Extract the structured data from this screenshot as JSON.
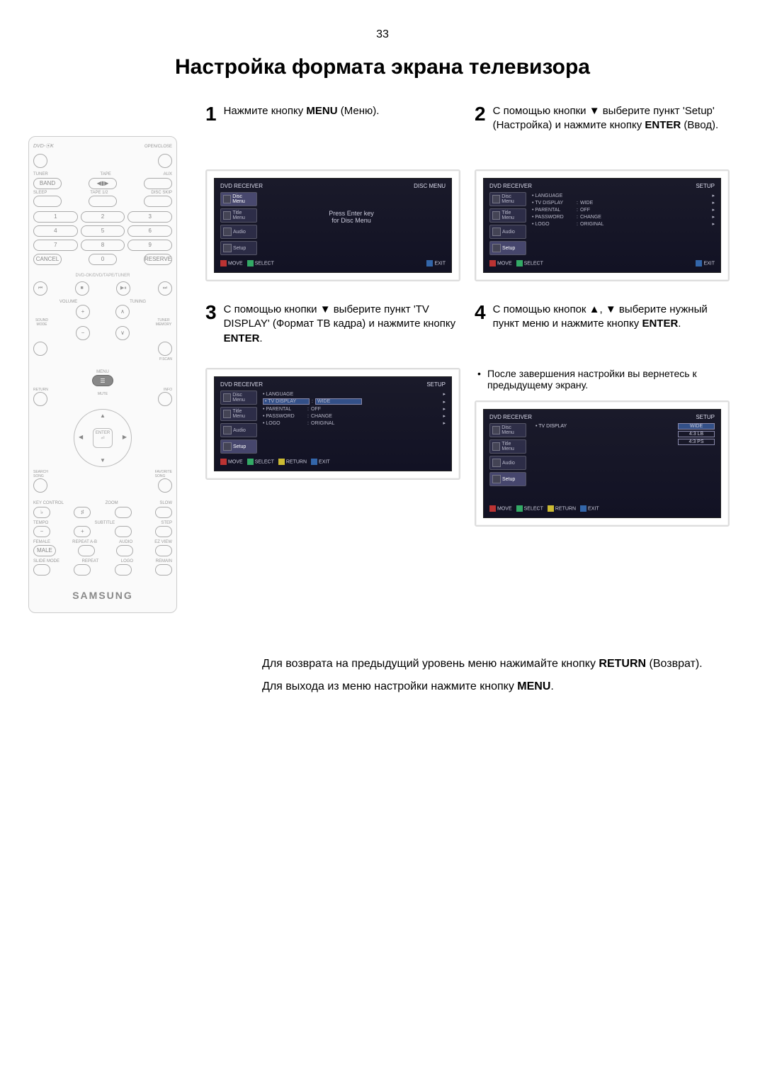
{
  "page_number": "33",
  "title": "Настройка формата экрана телевизора",
  "remote": {
    "brand_line": "DVD-⦿K",
    "open_close": "OPEN/CLOSE",
    "labels_row1": [
      "TUNER",
      "TAPE",
      "AUX"
    ],
    "pill_row1": [
      "BAND",
      "◀▮▶",
      ""
    ],
    "labels_row2": [
      "SLEEP",
      "TAPE 1/2",
      "DISC SKIP"
    ],
    "numpad": [
      "1",
      "2",
      "3",
      "4",
      "5",
      "6",
      "7",
      "8",
      "9"
    ],
    "bottom_row": [
      "CANCEL",
      "0",
      "RESERVE"
    ],
    "section_label": "DVD-OK/DVD/TAPE/TUNER",
    "transport": [
      "⏮",
      "■",
      "▶⏸",
      "⏭"
    ],
    "vol_label": "VOLUME",
    "tuning_label": "TUNING",
    "sound_mode": "SOUND\nMODE",
    "tuner_mem": "TUNER\nMEMORY",
    "pscan": "P.SCAN",
    "menu": "MENU",
    "info": "INFO",
    "return": "RETURN",
    "mute": "MUTE",
    "enter": "ENTER",
    "search_song": "SEARCH\nSONG",
    "favorite_song": "FAVORITE\nSONG",
    "key_control": "KEY CONTROL",
    "zoom": "ZOOM",
    "slow": "SLOW",
    "tempo": "TEMPO",
    "subtitle": "SUBTITLE",
    "step_btn": "STEP",
    "female": "FEMALE",
    "male": "MALE",
    "repeat_ab": "REPEAT A-B",
    "audio_btn": "AUDIO",
    "ezview": "EZ VIEW",
    "slide_mode": "SLIDE MODE",
    "repeat": "REPEAT",
    "logo_btn": "LOGO",
    "remain": "REMAIN",
    "brand": "SAMSUNG"
  },
  "steps": [
    {
      "num": "1",
      "text_parts": [
        {
          "t": "Нажмите кнопку ",
          "b": false
        },
        {
          "t": "MENU",
          "b": true
        },
        {
          "t": " (Меню).",
          "b": false
        }
      ]
    },
    {
      "num": "2",
      "text_parts": [
        {
          "t": "С помощью кнопки ▼ выберите пункт 'Setup' (Настройка) и нажмите кнопку ",
          "b": false
        },
        {
          "t": "ENTER",
          "b": true
        },
        {
          "t": " (Ввод).",
          "b": false
        }
      ]
    },
    {
      "num": "3",
      "text_parts": [
        {
          "t": "С помощью кнопки ▼ выберите пункт 'TV DISPLAY' (Формат ТВ кадра) и нажмите кнопку ",
          "b": false
        },
        {
          "t": "ENTER",
          "b": true
        },
        {
          "t": ".",
          "b": false
        }
      ]
    },
    {
      "num": "4",
      "text_parts": [
        {
          "t": "С помощью кнопок ▲, ▼ выберите нужный пункт меню и нажмите кнопку ",
          "b": false
        },
        {
          "t": "ENTER",
          "b": true
        },
        {
          "t": ".",
          "b": false
        }
      ],
      "bullet": "После завершения настройки вы вернетесь к предыдущему экрану."
    }
  ],
  "screens": {
    "common": {
      "receiver": "DVD RECEIVER",
      "sidebar": [
        "Disc Menu",
        "Title Menu",
        "Audio",
        "Setup"
      ]
    },
    "s1": {
      "right_title": "DISC MENU",
      "center_line1": "Press Enter key",
      "center_line2": "for Disc Menu",
      "footer": [
        "MOVE",
        "SELECT",
        "EXIT"
      ]
    },
    "s2": {
      "right_title": "SETUP",
      "rows": [
        {
          "label": "LANGUAGE",
          "val": "",
          "hl": false
        },
        {
          "label": "TV DISPLAY",
          "val": "WIDE",
          "hl": false
        },
        {
          "label": "PARENTAL",
          "val": "OFF",
          "hl": false
        },
        {
          "label": "PASSWORD",
          "val": "CHANGE",
          "hl": false
        },
        {
          "label": "LOGO",
          "val": "ORIGINAL",
          "hl": false
        }
      ],
      "footer": [
        "MOVE",
        "SELECT",
        "EXIT"
      ]
    },
    "s3": {
      "right_title": "SETUP",
      "rows": [
        {
          "label": "LANGUAGE",
          "val": "",
          "hl": false
        },
        {
          "label": "TV DISPLAY",
          "val": "WIDE",
          "hl": true
        },
        {
          "label": "PARENTAL",
          "val": "OFF",
          "hl": false
        },
        {
          "label": "PASSWORD",
          "val": "CHANGE",
          "hl": false
        },
        {
          "label": "LOGO",
          "val": "ORIGINAL",
          "hl": false
        }
      ],
      "footer": [
        "MOVE",
        "SELECT",
        "RETURN",
        "EXIT"
      ]
    },
    "s4": {
      "right_title": "SETUP",
      "main_label": "TV DISPLAY",
      "options": [
        {
          "t": "WIDE",
          "hl": true
        },
        {
          "t": "4:3 LB",
          "hl": false
        },
        {
          "t": "4:3 PS",
          "hl": false
        }
      ],
      "footer": [
        "MOVE",
        "SELECT",
        "RETURN",
        "EXIT"
      ]
    }
  },
  "footer_notes": [
    [
      {
        "t": "Для возврата на предыдущий уровень меню нажимайте кнопку ",
        "b": false
      },
      {
        "t": "RETURN",
        "b": true
      },
      {
        "t": " (Возврат).",
        "b": false
      }
    ],
    [
      {
        "t": "Для выхода из меню настройки нажмите кнопку ",
        "b": false
      },
      {
        "t": "MENU",
        "b": true
      },
      {
        "t": ".",
        "b": false
      }
    ]
  ],
  "colors": {
    "screen_bg": "#151528",
    "hl": "#335088"
  }
}
